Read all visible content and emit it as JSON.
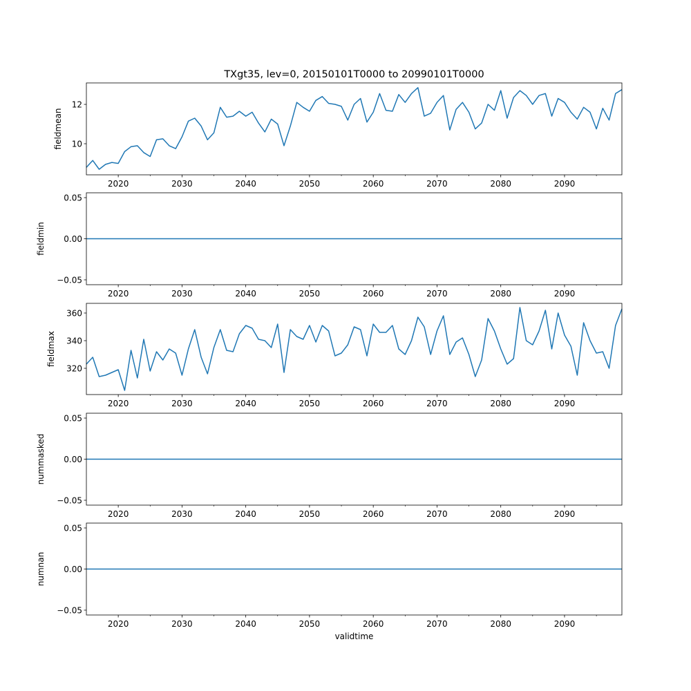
{
  "chart_data": [
    {
      "type": "line",
      "title": "TXgt35, lev=0, 20150101T0000 to 20990101T0000",
      "ylabel": "fieldmean",
      "xlabel": "",
      "xlim": [
        2015,
        2099
      ],
      "ylim": [
        8.42,
        13.09
      ],
      "yticks": [
        10,
        12
      ],
      "ytick_labels": [
        "10",
        "12"
      ],
      "x_start": 2015,
      "values": [
        8.8,
        9.15,
        8.7,
        8.95,
        9.05,
        9.0,
        9.6,
        9.85,
        9.9,
        9.55,
        9.35,
        10.2,
        10.25,
        9.9,
        9.75,
        10.35,
        11.15,
        11.3,
        10.9,
        10.2,
        10.55,
        11.85,
        11.35,
        11.4,
        11.65,
        11.4,
        11.6,
        11.05,
        10.6,
        11.25,
        11.0,
        9.9,
        10.9,
        12.1,
        11.85,
        11.65,
        12.2,
        12.4,
        12.05,
        12.0,
        11.9,
        11.2,
        12.0,
        12.3,
        11.1,
        11.6,
        12.55,
        11.7,
        11.65,
        12.5,
        12.1,
        12.55,
        12.85,
        11.4,
        11.55,
        12.1,
        12.45,
        10.7,
        11.75,
        12.1,
        11.6,
        10.75,
        11.05,
        12.0,
        11.7,
        12.7,
        11.3,
        12.35,
        12.7,
        12.45,
        12.0,
        12.45,
        12.55,
        11.4,
        12.3,
        12.1,
        11.6,
        11.25,
        11.85,
        11.6,
        10.75,
        11.8,
        11.2,
        12.55,
        12.75
      ]
    },
    {
      "type": "line",
      "title": "",
      "ylabel": "fieldmin",
      "xlabel": "",
      "xlim": [
        2015,
        2099
      ],
      "ylim": [
        -0.0559,
        0.0559
      ],
      "yticks": [
        -0.05,
        0,
        0.05
      ],
      "ytick_labels": [
        "−0.05",
        "0.00",
        "0.05"
      ],
      "x_start": 2015,
      "constant": 0
    },
    {
      "type": "line",
      "title": "",
      "ylabel": "fieldmax",
      "xlabel": "",
      "xlim": [
        2015,
        2099
      ],
      "ylim": [
        301,
        367
      ],
      "yticks": [
        320,
        340,
        360
      ],
      "ytick_labels": [
        "320",
        "340",
        "360"
      ],
      "x_start": 2015,
      "values": [
        323,
        328,
        314,
        315,
        317,
        319,
        304,
        333,
        313,
        341,
        318,
        332,
        326,
        334,
        331,
        315,
        334,
        348,
        328,
        316,
        335,
        348,
        333,
        332,
        345,
        351,
        349,
        341,
        340,
        335,
        352,
        317,
        348,
        343,
        341,
        351,
        339,
        351,
        347,
        329,
        331,
        337,
        350,
        348,
        329,
        352,
        346,
        346,
        351,
        334,
        330,
        340,
        357,
        350,
        330,
        347,
        358,
        330,
        339,
        342,
        330,
        314,
        326,
        356,
        347,
        334,
        323,
        327,
        364,
        340,
        337,
        347,
        362,
        334,
        360,
        344,
        336,
        315,
        353,
        340,
        331,
        332,
        320,
        351,
        363
      ]
    },
    {
      "type": "line",
      "title": "",
      "ylabel": "nummasked",
      "xlabel": "",
      "xlim": [
        2015,
        2099
      ],
      "ylim": [
        -0.0559,
        0.0559
      ],
      "yticks": [
        -0.05,
        0,
        0.05
      ],
      "ytick_labels": [
        "−0.05",
        "0.00",
        "0.05"
      ],
      "x_start": 2015,
      "constant": 0
    },
    {
      "type": "line",
      "title": "",
      "ylabel": "numnan",
      "xlabel": "validtime",
      "xlim": [
        2015,
        2099
      ],
      "ylim": [
        -0.0559,
        0.0559
      ],
      "yticks": [
        -0.05,
        0,
        0.05
      ],
      "ytick_labels": [
        "−0.05",
        "0.00",
        "0.05"
      ],
      "x_start": 2015,
      "constant": 0
    }
  ],
  "xticks": [
    2020,
    2030,
    2040,
    2050,
    2060,
    2070,
    2080,
    2090
  ],
  "xtick_labels": [
    "2020",
    "2030",
    "2040",
    "2050",
    "2060",
    "2070",
    "2080",
    "2090"
  ],
  "xminor": [
    2025,
    2035,
    2045,
    2055,
    2065,
    2075,
    2085,
    2095
  ],
  "colors": {
    "line": "#1f77b4",
    "axis": "#000000"
  }
}
